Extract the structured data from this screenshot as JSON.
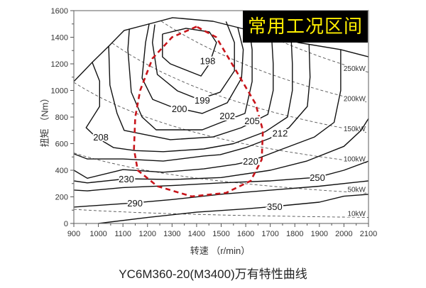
{
  "chart_data": {
    "type": "line",
    "title": "YC6M360-20(M3400)万有特性曲线",
    "xlabel": "转速 （r/min）",
    "ylabel": "扭矩 （Nm）",
    "xlim": [
      900,
      2100
    ],
    "ylim": [
      0,
      1600
    ],
    "xticks": [
      900,
      1000,
      1100,
      1200,
      1300,
      1400,
      1500,
      1600,
      1700,
      1800,
      1900,
      2000,
      2100
    ],
    "yticks": [
      0,
      200,
      400,
      600,
      800,
      1000,
      1200,
      1400,
      1600
    ],
    "grid": false,
    "annotation": "常用工况区间",
    "full_load_curve": [
      [
        900,
        1067
      ],
      [
        975,
        1211
      ],
      [
        1042,
        1333
      ],
      [
        1105,
        1451
      ],
      [
        1215,
        1504
      ],
      [
        1302,
        1547
      ],
      [
        1467,
        1520
      ],
      [
        1640,
        1440
      ],
      [
        1814,
        1360
      ],
      [
        1987,
        1307
      ],
      [
        2100,
        1253
      ]
    ],
    "bsfc_contours": [
      {
        "label": "198",
        "label_at": [
          1445,
          1225
        ],
        "points": [
          [
            1261,
            1424
          ],
          [
            1357,
            1467
          ],
          [
            1452,
            1440
          ],
          [
            1481,
            1360
          ],
          [
            1452,
            1200
          ],
          [
            1418,
            1109
          ],
          [
            1293,
            1200
          ],
          [
            1261,
            1253
          ],
          [
            1261,
            1424
          ]
        ]
      },
      {
        "label": "199",
        "label_at": [
          1423,
          928
        ],
        "points": [
          [
            1230,
            1496
          ],
          [
            1220,
            1360
          ],
          [
            1240,
            1120
          ],
          [
            1322,
            997
          ],
          [
            1409,
            933
          ],
          [
            1496,
            987
          ],
          [
            1554,
            1147
          ],
          [
            1554,
            1360
          ],
          [
            1520,
            1518
          ]
        ]
      },
      {
        "label": "200",
        "label_at": [
          1330,
          864
        ],
        "points": [
          [
            1207,
            1504
          ],
          [
            1192,
            1360
          ],
          [
            1178,
            1093
          ],
          [
            1221,
            933
          ],
          [
            1293,
            880
          ],
          [
            1423,
            827
          ],
          [
            1525,
            907
          ],
          [
            1583,
            1093
          ],
          [
            1590,
            1307
          ],
          [
            1567,
            1478
          ]
        ]
      },
      {
        "label": "202",
        "label_at": [
          1525,
          811
        ],
        "points": [
          [
            1126,
            1462
          ],
          [
            1120,
            1307
          ],
          [
            1134,
            987
          ],
          [
            1178,
            800
          ],
          [
            1235,
            704
          ],
          [
            1423,
            704
          ],
          [
            1500,
            760
          ],
          [
            1597,
            827
          ],
          [
            1626,
            1067
          ],
          [
            1626,
            1307
          ],
          [
            1615,
            1455
          ]
        ]
      },
      {
        "label": "205",
        "label_at": [
          1626,
          773
        ],
        "points": [
          [
            1042,
            1333
          ],
          [
            1047,
            1040
          ],
          [
            1076,
            827
          ],
          [
            1105,
            700
          ],
          [
            1293,
            630
          ],
          [
            1467,
            650
          ],
          [
            1582,
            720
          ],
          [
            1690,
            820
          ],
          [
            1712,
            1000
          ],
          [
            1712,
            1200
          ],
          [
            1705,
            1420
          ]
        ]
      },
      {
        "label": "208",
        "label_at": [
          1010,
          651
        ],
        "points": [
          [
            975,
            1211
          ],
          [
            1005,
            1070
          ],
          [
            1005,
            880
          ],
          [
            950,
            720
          ],
          [
            990,
            650
          ],
          [
            1062,
            570
          ],
          [
            1150,
            548
          ],
          [
            1264,
            540
          ],
          [
            1429,
            560
          ],
          [
            1550,
            600
          ],
          [
            1680,
            690
          ],
          [
            1770,
            800
          ],
          [
            1790,
            1000
          ],
          [
            1790,
            1200
          ],
          [
            1785,
            1392
          ]
        ]
      },
      {
        "label": "212",
        "label_at": [
          1740,
          680
        ],
        "points": [
          [
            900,
            523
          ],
          [
            955,
            485
          ],
          [
            1100,
            485
          ],
          [
            1264,
            469
          ],
          [
            1429,
            507
          ],
          [
            1496,
            517
          ],
          [
            1600,
            570
          ],
          [
            1698,
            640
          ],
          [
            1776,
            720
          ],
          [
            1851,
            880
          ],
          [
            1862,
            1100
          ],
          [
            1858,
            1345
          ]
        ]
      },
      {
        "label": "220",
        "label_at": [
          1620,
          469
        ],
        "points": [
          [
            900,
            400
          ],
          [
            955,
            340
          ],
          [
            1100,
            405
          ],
          [
            1264,
            385
          ],
          [
            1429,
            410
          ],
          [
            1560,
            445
          ],
          [
            1620,
            469
          ],
          [
            1750,
            560
          ],
          [
            1880,
            650
          ],
          [
            1960,
            760
          ],
          [
            1987,
            1000
          ],
          [
            1987,
            1307
          ]
        ]
      },
      {
        "label": "230",
        "label_at": [
          1114,
          336
        ],
        "points": [
          [
            900,
            320
          ],
          [
            955,
            305
          ],
          [
            1114,
            336
          ],
          [
            1300,
            330
          ],
          [
            1500,
            345
          ],
          [
            1700,
            400
          ],
          [
            1850,
            470
          ],
          [
            2000,
            580
          ],
          [
            2070,
            700
          ],
          [
            2100,
            789
          ]
        ]
      },
      {
        "label": "250",
        "label_at": [
          1892,
          347
        ],
        "points": [
          [
            900,
            251
          ],
          [
            955,
            245
          ],
          [
            1100,
            270
          ],
          [
            1300,
            285
          ],
          [
            1500,
            305
          ],
          [
            1700,
            320
          ],
          [
            1892,
            347
          ],
          [
            2000,
            400
          ],
          [
            2100,
            469
          ]
        ]
      },
      {
        "label": "290",
        "label_at": [
          1149,
          155
        ],
        "points": [
          [
            900,
            123
          ],
          [
            1149,
            155
          ],
          [
            1300,
            180
          ],
          [
            1500,
            220
          ],
          [
            1700,
            250
          ],
          [
            1900,
            280
          ],
          [
            2100,
            320
          ]
        ]
      },
      {
        "label": "350",
        "label_at": [
          1718,
          128
        ],
        "points": [
          [
            1000,
            0
          ],
          [
            1200,
            45
          ],
          [
            1400,
            85
          ],
          [
            1600,
            110
          ],
          [
            1718,
            128
          ],
          [
            1900,
            160
          ],
          [
            2000,
            205
          ],
          [
            2100,
            219
          ]
        ]
      }
    ],
    "power_lines": [
      {
        "label": "250kW",
        "kw": 250
      },
      {
        "label": "200kW",
        "kw": 200
      },
      {
        "label": "150kW",
        "kw": 150
      },
      {
        "label": "100kW",
        "kw": 100
      },
      {
        "label": "50kW",
        "kw": 50
      },
      {
        "label": "10kW",
        "kw": 10
      }
    ],
    "operating_region": [
      [
        1400,
        1480
      ],
      [
        1300,
        1400
      ],
      [
        1220,
        1240
      ],
      [
        1170,
        1000
      ],
      [
        1150,
        800
      ],
      [
        1145,
        560
      ],
      [
        1160,
        400
      ],
      [
        1240,
        280
      ],
      [
        1380,
        203
      ],
      [
        1520,
        230
      ],
      [
        1620,
        320
      ],
      [
        1665,
        480
      ],
      [
        1670,
        700
      ],
      [
        1640,
        900
      ],
      [
        1560,
        1150
      ],
      [
        1480,
        1400
      ],
      [
        1400,
        1480
      ]
    ],
    "colors": {
      "region": "#c8151b",
      "badge_bg": "#000000",
      "badge_text": "#ffef00"
    }
  }
}
